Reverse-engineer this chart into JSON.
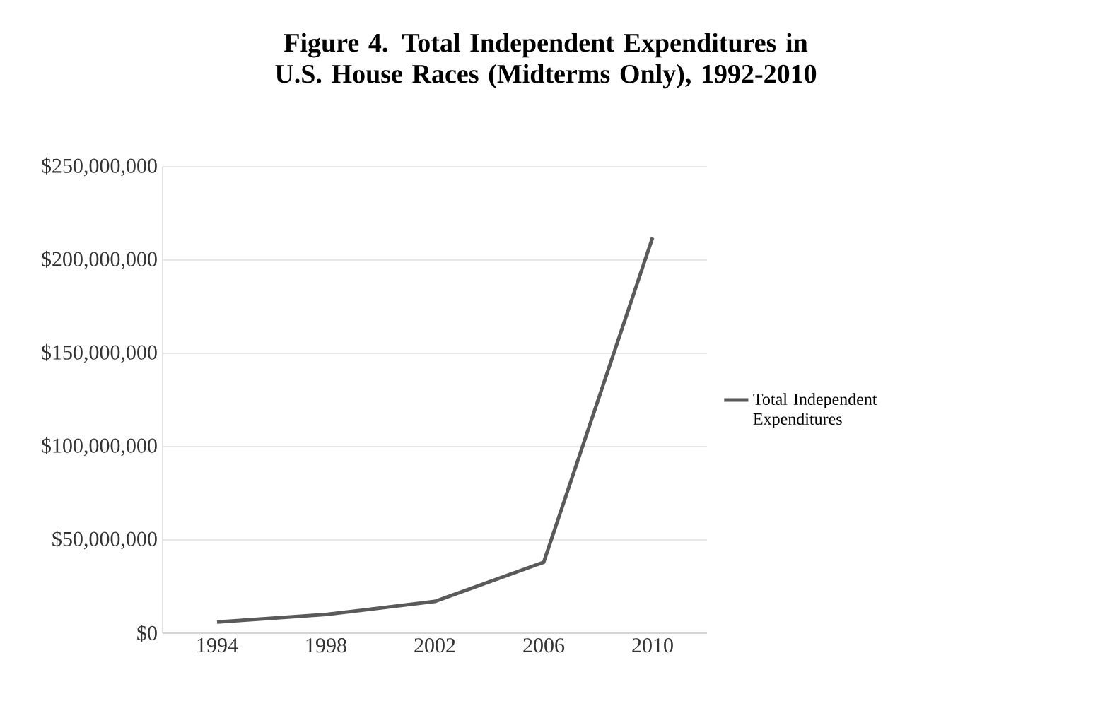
{
  "chart_data": {
    "type": "line",
    "title": "Figure 4. Total Independent Expenditures in U.S. House Races (Midterms Only), 1992-2010",
    "categories": [
      "1994",
      "1998",
      "2002",
      "2006",
      "2010"
    ],
    "series": [
      {
        "name": "Total Independent Expenditures",
        "color": "#5a5a5a",
        "values": [
          6000000,
          10000000,
          17000000,
          38000000,
          212000000
        ]
      }
    ],
    "ylim": [
      0,
      250000000
    ],
    "yticks": [
      {
        "value": 0,
        "label": "$0"
      },
      {
        "value": 50000000,
        "label": "$50,000,000"
      },
      {
        "value": 100000000,
        "label": "$100,000,000"
      },
      {
        "value": 150000000,
        "label": "$150,000,000"
      },
      {
        "value": 200000000,
        "label": "$200,000,000"
      },
      {
        "value": 250000000,
        "label": "$250,000,000"
      }
    ],
    "grid": "y",
    "legend": "right",
    "marker": "none",
    "line_style": "solid"
  }
}
